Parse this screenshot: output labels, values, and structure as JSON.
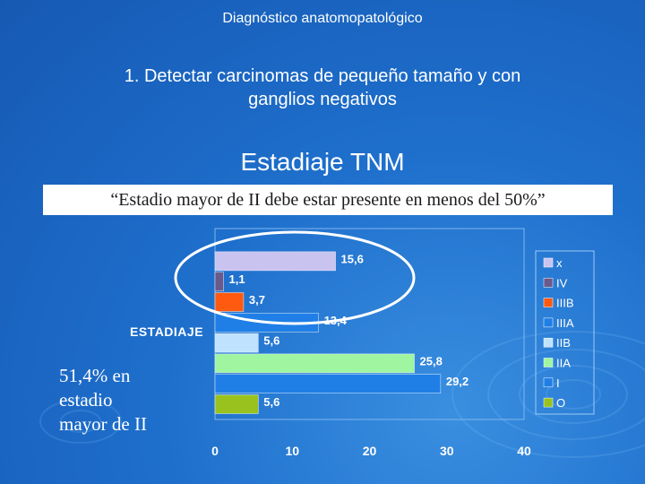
{
  "header": "Diagnóstico anatomopatológico",
  "goal": [
    "1. Detectar carcinomas de pequeño tamaño y con",
    "ganglios negativos"
  ],
  "section_title": "Estadiaje TNM",
  "quote": "“Estadio mayor de II debe estar presente en menos del 50%”",
  "note": [
    "51,4% en",
    "estadio",
    "mayor de II"
  ],
  "colors": {
    "x": "#c9c3f0",
    "IV": "#6a5a8c",
    "IIIB": "#ff5a10",
    "IIIA": "#1f7fe6",
    "IIB": "#bfe3ff",
    "IIA": "#9ff5a0",
    "I": "#1f7fe6",
    "O": "#99c21f"
  },
  "chart_data": {
    "type": "bar",
    "orientation": "horizontal",
    "ylabel": "ESTADIAJE",
    "categories": [
      "x",
      "IV",
      "IIIB",
      "IIIA",
      "IIB",
      "IIA",
      "I",
      "O"
    ],
    "values": [
      15.6,
      1.1,
      3.7,
      13.4,
      5.6,
      25.8,
      29.2,
      5.6
    ],
    "value_labels": [
      "15,6",
      "1,1",
      "3,7",
      "13,4",
      "5,6",
      "25,8",
      "29,2",
      "5,6"
    ],
    "xticks": [
      "0",
      "10",
      "20",
      "30",
      "40"
    ],
    "xlim": [
      0,
      40
    ],
    "legend": [
      "x",
      "IV",
      "IIIB",
      "IIIA",
      "IIB",
      "IIA",
      "I",
      "O"
    ],
    "legend_position": "right",
    "annotation": "ellipse highlighting stages x, IV and IIIB"
  }
}
